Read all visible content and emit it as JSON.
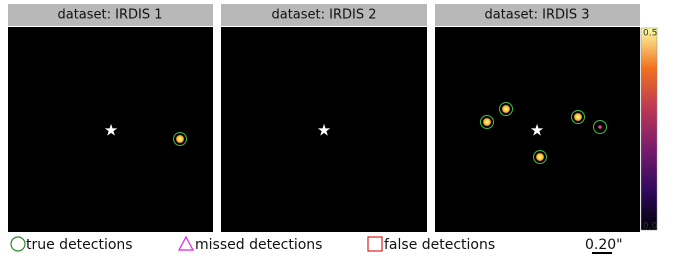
{
  "panels": [
    {
      "title": "dataset: IRDIS 1"
    },
    {
      "title": "dataset: IRDIS 2"
    },
    {
      "title": "dataset: IRDIS 3"
    }
  ],
  "colorbar": {
    "top_label": "0.5",
    "bottom_label": "0.0"
  },
  "legend": [
    "true detections",
    "missed detections",
    "false detections"
  ],
  "scale_bar": "0.20\""
}
